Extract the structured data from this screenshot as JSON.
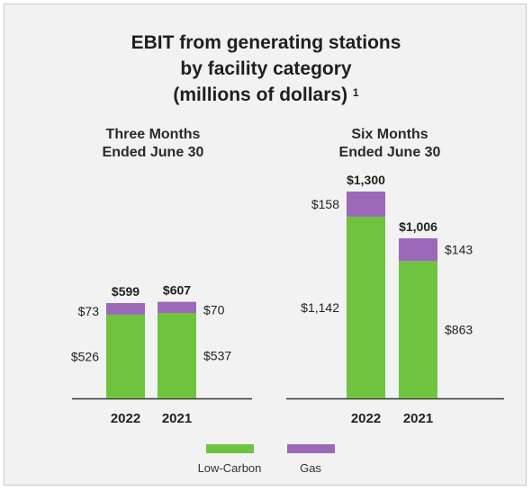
{
  "title": {
    "line1": "EBIT from generating stations",
    "line2": "by facility category",
    "line3": "(millions of dollars)",
    "footnote": "1"
  },
  "colors": {
    "low_carbon": "#6fc43f",
    "gas": "#9c68b8",
    "baseline": "#333333"
  },
  "legend": {
    "low_carbon": "Low-Carbon",
    "gas": "Gas"
  },
  "chart_data": [
    {
      "type": "bar",
      "stacked": true,
      "title": "Three Months Ended June 30",
      "title_lines": [
        "Three Months",
        "Ended June 30"
      ],
      "categories": [
        "2022",
        "2021"
      ],
      "series": [
        {
          "name": "Low-Carbon",
          "values": [
            526,
            537
          ],
          "labels": [
            "$526",
            "$537"
          ]
        },
        {
          "name": "Gas",
          "values": [
            73,
            70
          ],
          "labels": [
            "$73",
            "$70"
          ]
        }
      ],
      "totals": [
        599,
        607
      ],
      "total_labels": [
        "$599",
        "$607"
      ],
      "ylim": [
        0,
        1300
      ]
    },
    {
      "type": "bar",
      "stacked": true,
      "title": "Six Months Ended June 30",
      "title_lines": [
        "Six Months",
        "Ended June 30"
      ],
      "categories": [
        "2022",
        "2021"
      ],
      "series": [
        {
          "name": "Low-Carbon",
          "values": [
            1142,
            863
          ],
          "labels": [
            "$1,142",
            "$863"
          ]
        },
        {
          "name": "Gas",
          "values": [
            158,
            143
          ],
          "labels": [
            "$158",
            "$143"
          ]
        }
      ],
      "totals": [
        1300,
        1006
      ],
      "total_labels": [
        "$1,300",
        "$1,006"
      ],
      "ylim": [
        0,
        1300
      ]
    }
  ]
}
